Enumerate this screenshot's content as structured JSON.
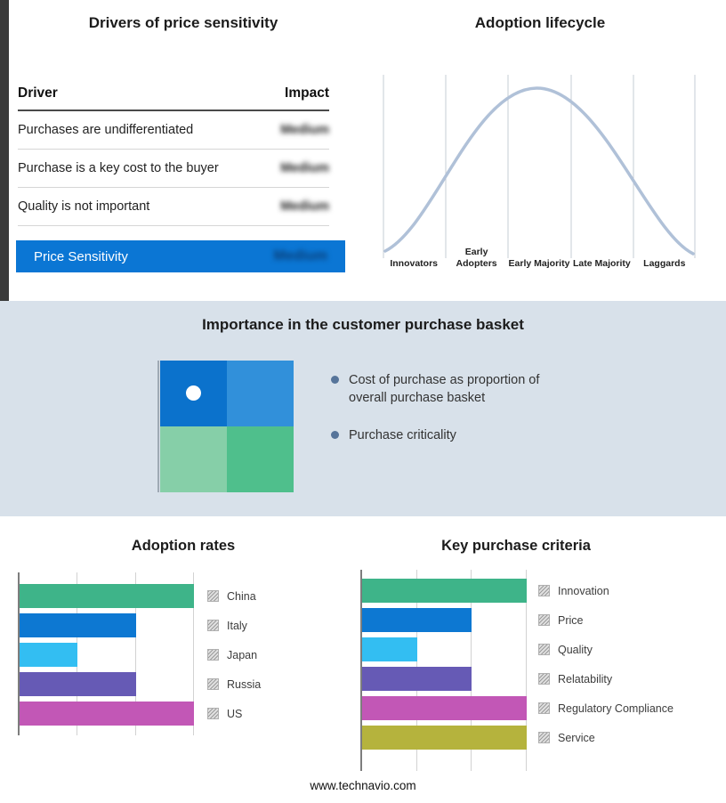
{
  "drivers_panel": {
    "title": "Drivers of price sensitivity",
    "columns": {
      "driver": "Driver",
      "impact": "Impact"
    },
    "rows": [
      {
        "driver": "Purchases are undifferentiated",
        "impact": "Medium"
      },
      {
        "driver": "Purchase is a key cost to the buyer",
        "impact": "Medium"
      },
      {
        "driver": "Quality is not important",
        "impact": "Medium"
      }
    ],
    "summary": {
      "label": "Price Sensitivity",
      "impact": "Medium",
      "bar_color": "#0b76d4"
    }
  },
  "lifecycle_panel": {
    "title": "Adoption lifecycle",
    "stages": [
      "Innovators",
      "Early Adopters",
      "Early Majority",
      "Late Majority",
      "Laggards"
    ],
    "curve_color": "#b0c1d8"
  },
  "basket_section": {
    "title": "Importance in the customer purchase basket",
    "bullets": [
      "Cost of purchase as proportion of overall purchase basket",
      "Purchase criticality"
    ],
    "quadrant_colors": {
      "top_left": "#0b72cc",
      "top_right": "#3190da",
      "bottom_left": "#86cfa8",
      "bottom_right": "#4fbf8c"
    },
    "background": "#d8e1ea"
  },
  "chart_data": [
    {
      "type": "bar",
      "title": "Adoption rates",
      "orientation": "horizontal",
      "categories": [
        "China",
        "Italy",
        "Japan",
        "Russia",
        "US"
      ],
      "values": [
        3,
        2,
        1,
        2,
        3
      ],
      "xlim": [
        0,
        3
      ],
      "grid": true,
      "legend_position": "right",
      "colors": [
        "#3eb489",
        "#0d78d2",
        "#33bef2",
        "#665ab5",
        "#c257b6"
      ]
    },
    {
      "type": "bar",
      "title": "Key purchase criteria",
      "orientation": "horizontal",
      "categories": [
        "Innovation",
        "Price",
        "Quality",
        "Relatability",
        "Regulatory Compliance",
        "Service"
      ],
      "values": [
        3,
        2,
        1,
        2,
        3,
        3
      ],
      "xlim": [
        0,
        3
      ],
      "grid": true,
      "legend_position": "right",
      "colors": [
        "#3eb489",
        "#0d78d2",
        "#33bef2",
        "#665ab5",
        "#c257b6",
        "#b5b33d"
      ]
    }
  ],
  "footer": {
    "text": "www.technavio.com"
  }
}
